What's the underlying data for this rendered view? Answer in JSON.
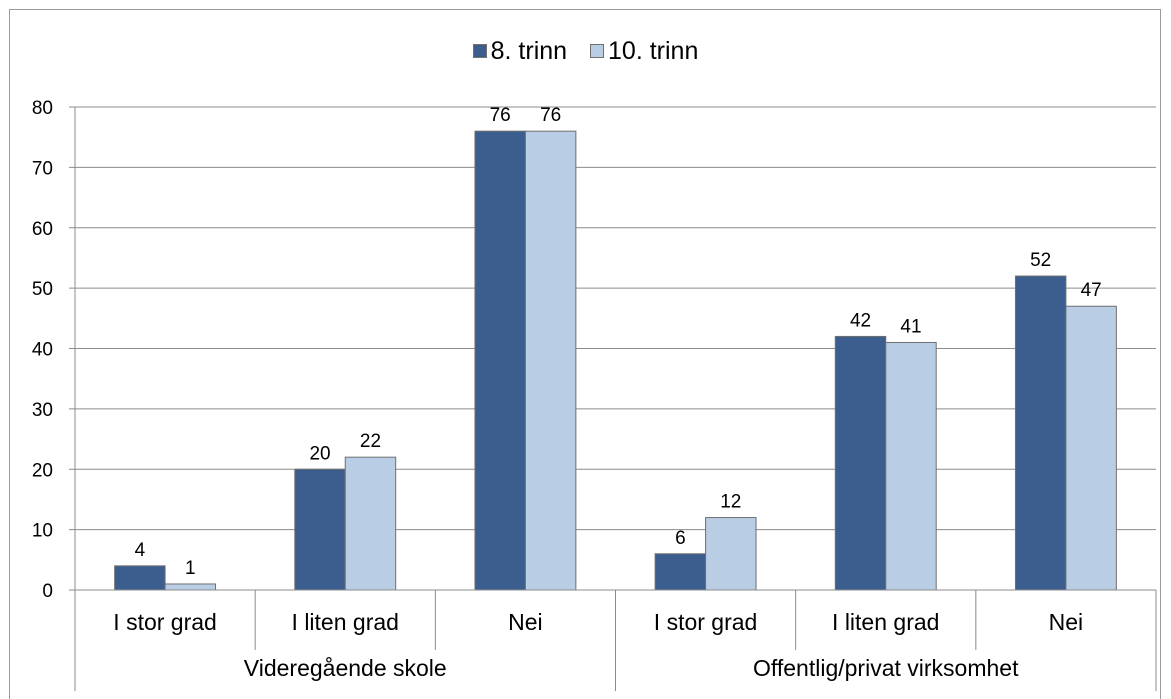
{
  "chart_data": {
    "type": "bar",
    "groups": [
      {
        "label": "Videregående skole",
        "categories": [
          "I stor grad",
          "I liten grad",
          "Nei"
        ]
      },
      {
        "label": "Offentlig/privat virksomhet",
        "categories": [
          "I stor grad",
          "I liten grad",
          "Nei"
        ]
      }
    ],
    "series": [
      {
        "name": "8. trinn",
        "color": "#3b5e8f",
        "values": [
          4,
          20,
          76,
          6,
          42,
          52
        ]
      },
      {
        "name": "10. trinn",
        "color": "#b9cde4",
        "values": [
          1,
          22,
          76,
          12,
          41,
          47
        ]
      }
    ],
    "ylim": [
      0,
      80
    ],
    "yticks": [
      0,
      10,
      20,
      30,
      40,
      50,
      60,
      70,
      80
    ],
    "grid": true,
    "legend_position": "top"
  }
}
